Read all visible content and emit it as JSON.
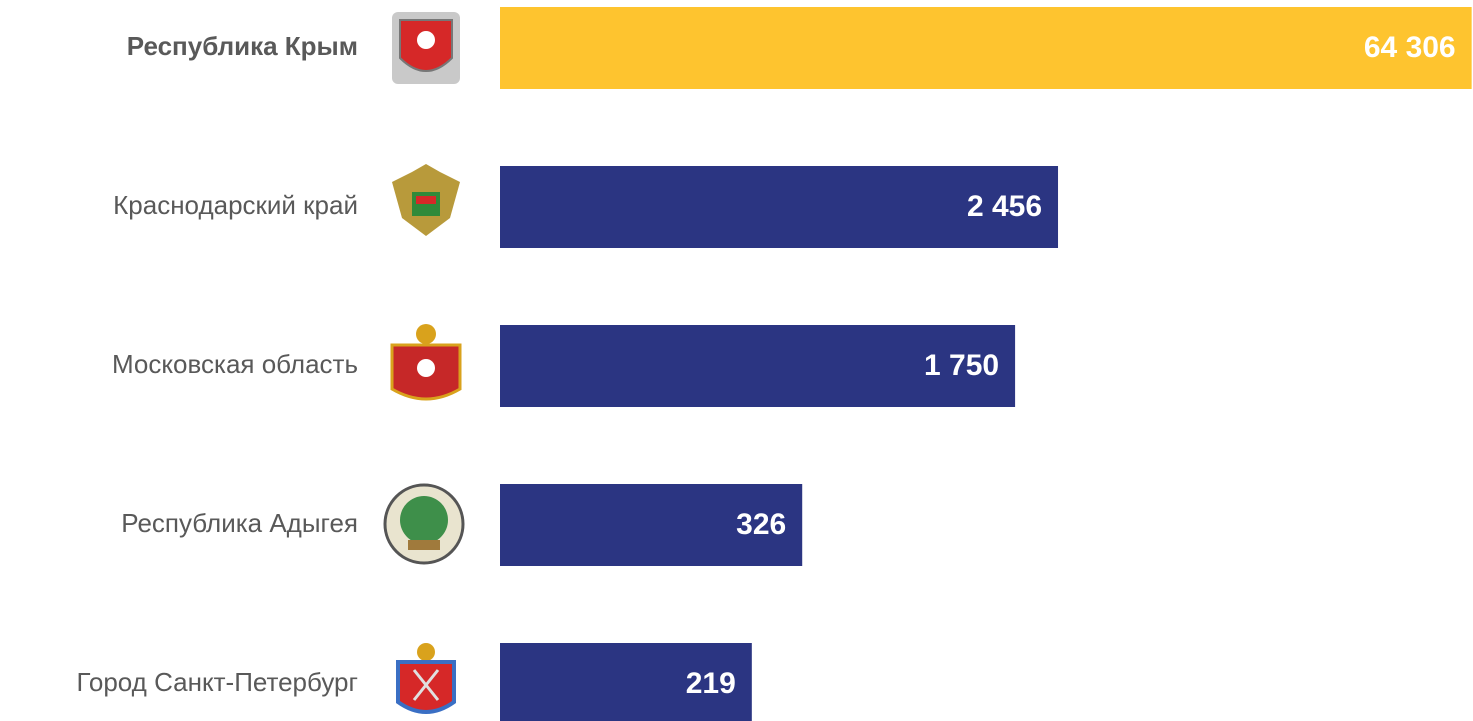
{
  "chart_data": {
    "type": "hbar",
    "categories": [
      "Республика Крым",
      "Краснодарский край",
      "Московская область",
      "Республика Адыгея",
      "Город Санкт-Петербург"
    ],
    "values": [
      64306,
      2456,
      1750,
      326,
      219
    ],
    "value_labels": [
      "64 306",
      "2 456",
      "1 750",
      "326",
      "219"
    ],
    "colors": [
      "#fec42f",
      "#2b3582",
      "#2b3582",
      "#2b3582",
      "#2b3582"
    ],
    "highlight": 0,
    "log_scale": true,
    "xlim": [
      30,
      65000
    ]
  }
}
